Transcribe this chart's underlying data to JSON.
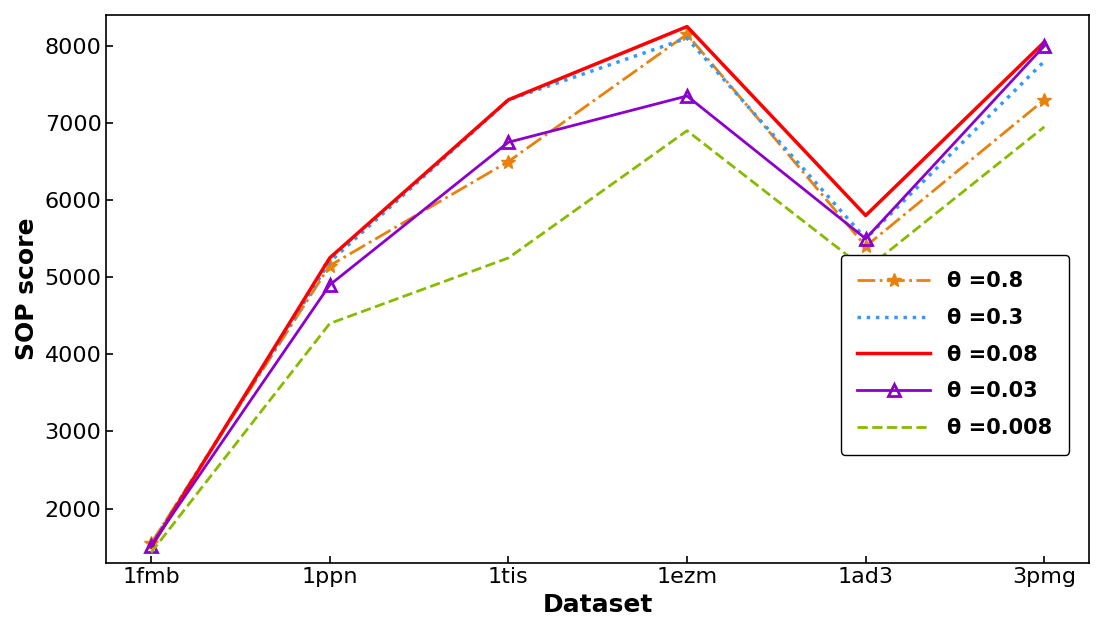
{
  "categories": [
    "1fmb",
    "1ppn",
    "1tis",
    "1ezm",
    "1ad3",
    "3pmg"
  ],
  "series": {
    "theta_0.8": {
      "values": [
        1550,
        5150,
        6500,
        8150,
        5400,
        7300
      ],
      "color": "#E8820C",
      "linestyle": "-.",
      "marker": "*",
      "markersize": 10,
      "linewidth": 2.0,
      "label": "θ =0.8"
    },
    "theta_0.3": {
      "values": [
        1530,
        5200,
        7300,
        8100,
        5500,
        7800
      ],
      "color": "#3399FF",
      "linestyle": ":",
      "marker": null,
      "markersize": 0,
      "linewidth": 2.5,
      "label": "θ =0.3"
    },
    "theta_0.08": {
      "values": [
        1500,
        5250,
        7300,
        8250,
        5800,
        8050
      ],
      "color": "#FF0000",
      "linestyle": "-",
      "marker": null,
      "markersize": 0,
      "linewidth": 2.5,
      "label": "θ =0.08"
    },
    "theta_0.03": {
      "values": [
        1520,
        4900,
        6750,
        7350,
        5500,
        8000
      ],
      "color": "#8B00CC",
      "linestyle": "-",
      "marker": "^",
      "markersize": 9,
      "markerfacecolor": "none",
      "linewidth": 2.0,
      "label": "θ =0.03"
    },
    "theta_0.008": {
      "values": [
        1430,
        4400,
        5250,
        6900,
        5100,
        6950
      ],
      "color": "#88BB00",
      "linestyle": "--",
      "marker": null,
      "markersize": 0,
      "linewidth": 2.0,
      "label": "θ =0.008"
    }
  },
  "xlabel": "Dataset",
  "ylabel": "SOP score",
  "ylim": [
    1300,
    8400
  ],
  "yticks": [
    2000,
    3000,
    4000,
    5000,
    6000,
    7000,
    8000
  ],
  "legend_loc": "center right",
  "title": "",
  "xlabel_fontsize": 18,
  "ylabel_fontsize": 18,
  "tick_fontsize": 16,
  "legend_fontsize": 15
}
